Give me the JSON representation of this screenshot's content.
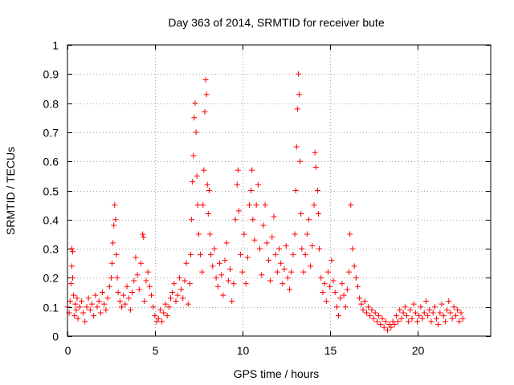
{
  "chart_data": {
    "type": "scatter",
    "title": "Day 363 of 2014, SRMTID for receiver bute",
    "xlabel": "GPS time / hours",
    "ylabel": "SRMTID / TECUs",
    "xlim": [
      0,
      24.2
    ],
    "ylim": [
      0,
      1
    ],
    "xticks": [
      0,
      5,
      10,
      15,
      20
    ],
    "xtick_labels": [
      "0",
      "5",
      "10",
      "15",
      "20"
    ],
    "yticks": [
      0,
      0.1,
      0.2,
      0.3,
      0.4,
      0.5,
      0.6,
      0.7,
      0.8,
      0.9,
      1
    ],
    "ytick_labels": [
      "0",
      "0.1",
      "0.2",
      "0.3",
      "0.4",
      "0.5",
      "0.6",
      "0.7",
      "0.8",
      "0.9",
      "1"
    ],
    "grid": true,
    "marker": "+",
    "color": "#ff0000",
    "series": [
      {
        "name": "SRMTID",
        "points": [
          [
            0.0,
            0.1
          ],
          [
            0.1,
            0.08
          ],
          [
            0.15,
            0.12
          ],
          [
            0.2,
            0.18
          ],
          [
            0.25,
            0.24
          ],
          [
            0.25,
            0.3
          ],
          [
            0.3,
            0.29
          ],
          [
            0.3,
            0.2
          ],
          [
            0.35,
            0.14
          ],
          [
            0.4,
            0.07
          ],
          [
            0.45,
            0.11
          ],
          [
            0.5,
            0.09
          ],
          [
            0.55,
            0.13
          ],
          [
            0.6,
            0.06
          ],
          [
            0.7,
            0.1
          ],
          [
            0.8,
            0.12
          ],
          [
            0.9,
            0.08
          ],
          [
            1.0,
            0.05
          ],
          [
            1.1,
            0.1
          ],
          [
            1.2,
            0.13
          ],
          [
            1.3,
            0.09
          ],
          [
            1.4,
            0.11
          ],
          [
            1.5,
            0.07
          ],
          [
            1.6,
            0.14
          ],
          [
            1.7,
            0.1
          ],
          [
            1.8,
            0.12
          ],
          [
            1.9,
            0.08
          ],
          [
            2.0,
            0.15
          ],
          [
            2.1,
            0.11
          ],
          [
            2.2,
            0.09
          ],
          [
            2.3,
            0.13
          ],
          [
            2.4,
            0.17
          ],
          [
            2.5,
            0.2
          ],
          [
            2.55,
            0.25
          ],
          [
            2.6,
            0.32
          ],
          [
            2.65,
            0.38
          ],
          [
            2.7,
            0.45
          ],
          [
            2.75,
            0.4
          ],
          [
            2.8,
            0.28
          ],
          [
            2.85,
            0.2
          ],
          [
            2.9,
            0.15
          ],
          [
            3.0,
            0.12
          ],
          [
            3.1,
            0.1
          ],
          [
            3.2,
            0.14
          ],
          [
            3.3,
            0.11
          ],
          [
            3.4,
            0.17
          ],
          [
            3.5,
            0.13
          ],
          [
            3.6,
            0.09
          ],
          [
            3.7,
            0.15
          ],
          [
            3.8,
            0.19
          ],
          [
            3.9,
            0.27
          ],
          [
            4.0,
            0.21
          ],
          [
            4.1,
            0.16
          ],
          [
            4.2,
            0.25
          ],
          [
            4.3,
            0.35
          ],
          [
            4.35,
            0.34
          ],
          [
            4.4,
            0.12
          ],
          [
            4.5,
            0.19
          ],
          [
            4.6,
            0.22
          ],
          [
            4.7,
            0.17
          ],
          [
            4.8,
            0.14
          ],
          [
            4.9,
            0.1
          ],
          [
            5.0,
            0.07
          ],
          [
            5.1,
            0.05
          ],
          [
            5.2,
            0.06
          ],
          [
            5.3,
            0.09
          ],
          [
            5.4,
            0.05
          ],
          [
            5.5,
            0.08
          ],
          [
            5.6,
            0.11
          ],
          [
            5.7,
            0.07
          ],
          [
            5.8,
            0.1
          ],
          [
            5.9,
            0.13
          ],
          [
            6.0,
            0.15
          ],
          [
            6.1,
            0.18
          ],
          [
            6.2,
            0.12
          ],
          [
            6.3,
            0.14
          ],
          [
            6.4,
            0.2
          ],
          [
            6.5,
            0.16
          ],
          [
            6.6,
            0.13
          ],
          [
            6.7,
            0.19
          ],
          [
            6.8,
            0.25
          ],
          [
            6.9,
            0.11
          ],
          [
            7.0,
            0.18
          ],
          [
            7.05,
            0.28
          ],
          [
            7.1,
            0.4
          ],
          [
            7.15,
            0.53
          ],
          [
            7.2,
            0.62
          ],
          [
            7.25,
            0.75
          ],
          [
            7.3,
            0.8
          ],
          [
            7.35,
            0.7
          ],
          [
            7.4,
            0.55
          ],
          [
            7.45,
            0.45
          ],
          [
            7.5,
            0.35
          ],
          [
            7.6,
            0.28
          ],
          [
            7.7,
            0.22
          ],
          [
            7.75,
            0.45
          ],
          [
            7.8,
            0.57
          ],
          [
            7.85,
            0.77
          ],
          [
            7.9,
            0.88
          ],
          [
            7.95,
            0.83
          ],
          [
            8.0,
            0.52
          ],
          [
            8.05,
            0.42
          ],
          [
            8.1,
            0.5
          ],
          [
            8.15,
            0.35
          ],
          [
            8.2,
            0.28
          ],
          [
            8.3,
            0.24
          ],
          [
            8.4,
            0.3
          ],
          [
            8.5,
            0.2
          ],
          [
            8.6,
            0.17
          ],
          [
            8.7,
            0.25
          ],
          [
            8.8,
            0.21
          ],
          [
            8.9,
            0.14
          ],
          [
            9.0,
            0.26
          ],
          [
            9.1,
            0.32
          ],
          [
            9.2,
            0.19
          ],
          [
            9.3,
            0.23
          ],
          [
            9.4,
            0.12
          ],
          [
            9.5,
            0.18
          ],
          [
            9.6,
            0.4
          ],
          [
            9.7,
            0.52
          ],
          [
            9.75,
            0.57
          ],
          [
            9.8,
            0.43
          ],
          [
            9.9,
            0.28
          ],
          [
            10.0,
            0.22
          ],
          [
            10.1,
            0.35
          ],
          [
            10.2,
            0.18
          ],
          [
            10.3,
            0.27
          ],
          [
            10.4,
            0.45
          ],
          [
            10.5,
            0.5
          ],
          [
            10.55,
            0.57
          ],
          [
            10.6,
            0.4
          ],
          [
            10.7,
            0.33
          ],
          [
            10.8,
            0.45
          ],
          [
            10.9,
            0.52
          ],
          [
            11.0,
            0.3
          ],
          [
            11.1,
            0.21
          ],
          [
            11.2,
            0.38
          ],
          [
            11.3,
            0.45
          ],
          [
            11.4,
            0.32
          ],
          [
            11.5,
            0.26
          ],
          [
            11.6,
            0.19
          ],
          [
            11.7,
            0.34
          ],
          [
            11.8,
            0.41
          ],
          [
            11.9,
            0.28
          ],
          [
            12.0,
            0.22
          ],
          [
            12.1,
            0.3
          ],
          [
            12.2,
            0.25
          ],
          [
            12.3,
            0.18
          ],
          [
            12.4,
            0.23
          ],
          [
            12.5,
            0.31
          ],
          [
            12.6,
            0.2
          ],
          [
            12.7,
            0.16
          ],
          [
            12.8,
            0.22
          ],
          [
            12.9,
            0.28
          ],
          [
            13.0,
            0.35
          ],
          [
            13.05,
            0.5
          ],
          [
            13.1,
            0.65
          ],
          [
            13.15,
            0.78
          ],
          [
            13.2,
            0.9
          ],
          [
            13.25,
            0.83
          ],
          [
            13.3,
            0.6
          ],
          [
            13.35,
            0.42
          ],
          [
            13.4,
            0.3
          ],
          [
            13.5,
            0.22
          ],
          [
            13.6,
            0.28
          ],
          [
            13.7,
            0.35
          ],
          [
            13.8,
            0.4
          ],
          [
            13.9,
            0.24
          ],
          [
            14.0,
            0.31
          ],
          [
            14.1,
            0.45
          ],
          [
            14.15,
            0.63
          ],
          [
            14.2,
            0.58
          ],
          [
            14.3,
            0.5
          ],
          [
            14.35,
            0.42
          ],
          [
            14.4,
            0.3
          ],
          [
            14.5,
            0.2
          ],
          [
            14.6,
            0.15
          ],
          [
            14.7,
            0.18
          ],
          [
            14.8,
            0.12
          ],
          [
            14.9,
            0.22
          ],
          [
            15.0,
            0.17
          ],
          [
            15.1,
            0.26
          ],
          [
            15.2,
            0.19
          ],
          [
            15.3,
            0.15
          ],
          [
            15.4,
            0.1
          ],
          [
            15.5,
            0.07
          ],
          [
            15.6,
            0.13
          ],
          [
            15.7,
            0.18
          ],
          [
            15.8,
            0.14
          ],
          [
            15.9,
            0.1
          ],
          [
            16.0,
            0.16
          ],
          [
            16.1,
            0.22
          ],
          [
            16.15,
            0.35
          ],
          [
            16.2,
            0.45
          ],
          [
            16.3,
            0.3
          ],
          [
            16.4,
            0.24
          ],
          [
            16.5,
            0.2
          ],
          [
            16.6,
            0.17
          ],
          [
            16.7,
            0.13
          ],
          [
            16.8,
            0.11
          ],
          [
            16.9,
            0.09
          ],
          [
            17.0,
            0.12
          ],
          [
            17.1,
            0.08
          ],
          [
            17.2,
            0.1
          ],
          [
            17.3,
            0.07
          ],
          [
            17.4,
            0.09
          ],
          [
            17.5,
            0.06
          ],
          [
            17.6,
            0.08
          ],
          [
            17.7,
            0.05
          ],
          [
            17.8,
            0.07
          ],
          [
            17.9,
            0.04
          ],
          [
            18.0,
            0.06
          ],
          [
            18.1,
            0.03
          ],
          [
            18.2,
            0.05
          ],
          [
            18.3,
            0.02
          ],
          [
            18.4,
            0.04
          ],
          [
            18.5,
            0.03
          ],
          [
            18.6,
            0.05
          ],
          [
            18.7,
            0.04
          ],
          [
            18.8,
            0.07
          ],
          [
            18.9,
            0.05
          ],
          [
            19.0,
            0.09
          ],
          [
            19.1,
            0.06
          ],
          [
            19.2,
            0.08
          ],
          [
            19.3,
            0.1
          ],
          [
            19.4,
            0.07
          ],
          [
            19.5,
            0.05
          ],
          [
            19.6,
            0.09
          ],
          [
            19.7,
            0.06
          ],
          [
            19.8,
            0.11
          ],
          [
            19.9,
            0.08
          ],
          [
            20.0,
            0.05
          ],
          [
            20.1,
            0.07
          ],
          [
            20.2,
            0.1
          ],
          [
            20.3,
            0.06
          ],
          [
            20.4,
            0.08
          ],
          [
            20.5,
            0.12
          ],
          [
            20.6,
            0.07
          ],
          [
            20.7,
            0.09
          ],
          [
            20.8,
            0.05
          ],
          [
            20.9,
            0.08
          ],
          [
            21.0,
            0.1
          ],
          [
            21.1,
            0.06
          ],
          [
            21.2,
            0.04
          ],
          [
            21.3,
            0.08
          ],
          [
            21.4,
            0.11
          ],
          [
            21.5,
            0.07
          ],
          [
            21.6,
            0.05
          ],
          [
            21.7,
            0.09
          ],
          [
            21.8,
            0.12
          ],
          [
            21.9,
            0.08
          ],
          [
            22.0,
            0.06
          ],
          [
            22.1,
            0.1
          ],
          [
            22.2,
            0.07
          ],
          [
            22.3,
            0.09
          ],
          [
            22.4,
            0.05
          ],
          [
            22.5,
            0.08
          ],
          [
            22.6,
            0.06
          ]
        ]
      }
    ]
  }
}
